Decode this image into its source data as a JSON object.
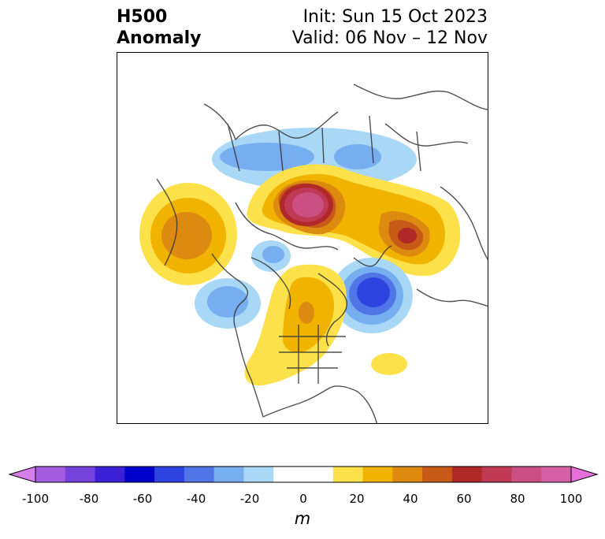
{
  "title": {
    "left_line1": "H500",
    "left_line2": "Anomaly",
    "right_line1": "Init: Sun 15 Oct 2023",
    "right_line2": "Valid: 06 Nov – 12 Nov"
  },
  "colorbar": {
    "label": "m",
    "ticks": [
      "-100",
      "-80",
      "-60",
      "-40",
      "-20",
      "0",
      "20",
      "40",
      "60",
      "80",
      "100"
    ],
    "colors": [
      "#a45be0",
      "#7441dc",
      "#3b1fd6",
      "#0000cc",
      "#2d44e0",
      "#4f75e6",
      "#76aef0",
      "#a9d8f6",
      "#ffffff",
      "#ffffff",
      "#fde14a",
      "#f0b400",
      "#dd8a10",
      "#c85a18",
      "#b02828",
      "#c03a55",
      "#cc4f83",
      "#d560a6"
    ],
    "under_color": "#d57de8",
    "over_color": "#e570dc"
  }
}
